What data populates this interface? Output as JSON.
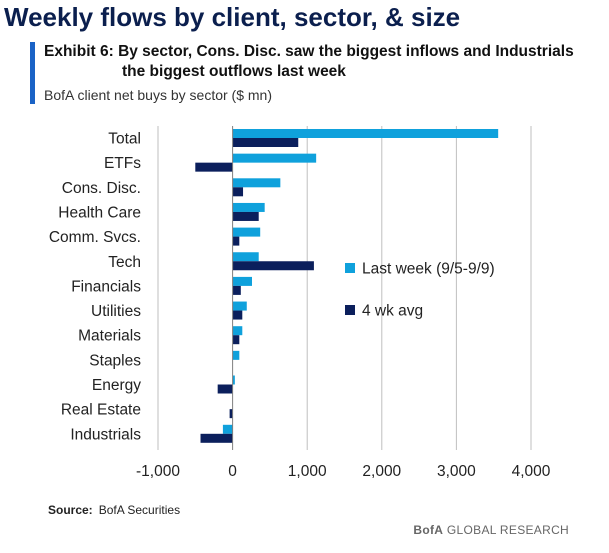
{
  "page": {
    "title": "Weekly flows by client, sector, & size",
    "exhibit_line1": "Exhibit 6: By sector, Cons. Disc. saw the biggest inflows and Industrials",
    "exhibit_line2": "the biggest outflows last week",
    "subtitle": "BofA client net buys by sector ($ mn)",
    "source_label": "Source:",
    "source_text": "BofA Securities",
    "footer_brand": "BofA",
    "footer_rest": "GLOBAL RESEARCH"
  },
  "colors": {
    "last_week": "#0fa1dc",
    "four_wk_avg": "#0b1f5c",
    "grid": "#bfbfbf",
    "axis": "#7f7f7f"
  },
  "chart_data": {
    "type": "bar",
    "orientation": "horizontal",
    "title": "",
    "xlabel": "",
    "ylabel": "",
    "xlim": [
      -1000,
      4000
    ],
    "xticks": [
      -1000,
      0,
      1000,
      2000,
      3000,
      4000
    ],
    "xtick_labels": [
      "-1,000",
      "0",
      "1,000",
      "2,000",
      "3,000",
      "4,000"
    ],
    "grid": "vertical",
    "legend_position": "right",
    "categories": [
      "Total",
      "ETFs",
      "Cons. Disc.",
      "Health Care",
      "Comm. Svcs.",
      "Tech",
      "Financials",
      "Utilities",
      "Materials",
      "Staples",
      "Energy",
      "Real Estate",
      "Industrials"
    ],
    "series": [
      {
        "name": "Last week (9/5-9/9)",
        "values": [
          3560,
          1120,
          640,
          430,
          370,
          350,
          260,
          190,
          130,
          90,
          30,
          0,
          -130
        ]
      },
      {
        "name": "4 wk avg",
        "values": [
          880,
          -500,
          140,
          350,
          90,
          1090,
          110,
          130,
          90,
          0,
          -200,
          -40,
          -430
        ]
      }
    ]
  }
}
